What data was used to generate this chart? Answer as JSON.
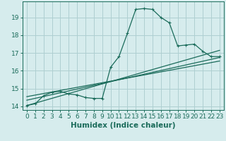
{
  "background_color": "#d6eced",
  "grid_color": "#aecfd1",
  "line_color": "#1a6b5a",
  "xlabel": "Humidex (Indice chaleur)",
  "xlabel_fontsize": 7.5,
  "tick_fontsize": 6.5,
  "xlim": [
    -0.5,
    23.5
  ],
  "ylim": [
    13.8,
    19.9
  ],
  "yticks": [
    14,
    15,
    16,
    17,
    18,
    19
  ],
  "xticks": [
    0,
    1,
    2,
    3,
    4,
    5,
    6,
    7,
    8,
    9,
    10,
    11,
    12,
    13,
    14,
    15,
    16,
    17,
    18,
    19,
    20,
    21,
    22,
    23
  ],
  "series1_x": [
    0,
    1,
    2,
    3,
    4,
    5,
    6,
    7,
    8,
    9,
    10,
    11,
    12,
    13,
    14,
    15,
    16,
    17,
    18,
    19,
    20,
    21,
    22,
    23
  ],
  "series1_y": [
    14.05,
    14.15,
    14.6,
    14.8,
    14.85,
    14.7,
    14.65,
    14.5,
    14.45,
    14.45,
    16.2,
    16.8,
    18.1,
    19.45,
    19.5,
    19.45,
    19.0,
    18.7,
    17.4,
    17.45,
    17.5,
    17.1,
    16.8,
    16.8
  ],
  "series2_x": [
    0,
    23
  ],
  "series2_y": [
    14.05,
    17.15
  ],
  "series3_x": [
    0,
    23
  ],
  "series3_y": [
    14.35,
    16.75
  ],
  "series4_x": [
    0,
    23
  ],
  "series4_y": [
    14.55,
    16.55
  ]
}
